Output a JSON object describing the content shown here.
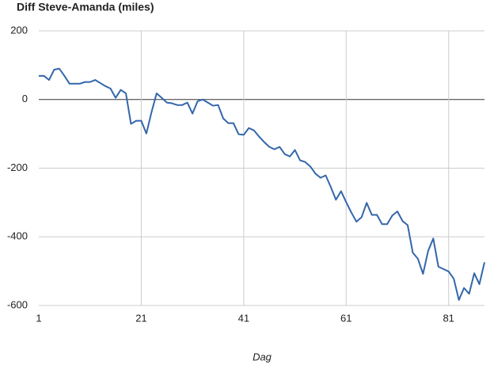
{
  "chart_data": {
    "type": "line",
    "title": "Diff Steve-Amanda (miles)",
    "x_label": "Dag",
    "x": [
      1,
      2,
      3,
      4,
      5,
      6,
      7,
      8,
      9,
      10,
      11,
      12,
      13,
      14,
      15,
      16,
      17,
      18,
      19,
      20,
      21,
      22,
      23,
      24,
      25,
      26,
      27,
      28,
      29,
      30,
      31,
      32,
      33,
      34,
      35,
      36,
      37,
      38,
      39,
      40,
      41,
      42,
      43,
      44,
      45,
      46,
      47,
      48,
      49,
      50,
      51,
      52,
      53,
      54,
      55,
      56,
      57,
      58,
      59,
      60,
      61,
      62,
      63,
      64,
      65,
      66,
      67,
      68,
      69,
      70,
      71,
      72,
      73,
      74,
      75,
      76,
      77,
      78,
      79,
      80,
      81,
      82,
      83,
      84,
      85,
      86,
      87,
      88
    ],
    "series": [
      {
        "name": "Diff",
        "color": "#3366aa",
        "values": [
          69,
          69,
          57,
          87,
          90,
          69,
          46,
          46,
          46,
          51,
          51,
          57,
          48,
          39,
          32,
          5,
          28,
          18,
          -71,
          -62,
          -62,
          -99,
          -37,
          18,
          5,
          -9,
          -11,
          -16,
          -16,
          -9,
          -41,
          -5,
          0,
          -9,
          -18,
          -16,
          -55,
          -69,
          -69,
          -101,
          -103,
          -83,
          -90,
          -108,
          -124,
          -138,
          -145,
          -138,
          -159,
          -166,
          -147,
          -177,
          -182,
          -195,
          -216,
          -228,
          -221,
          -255,
          -292,
          -267,
          -299,
          -329,
          -356,
          -343,
          -301,
          -336,
          -336,
          -363,
          -363,
          -338,
          -326,
          -354,
          -366,
          -446,
          -464,
          -508,
          -441,
          -405,
          -487,
          -494,
          -501,
          -522,
          -584,
          -549,
          -566,
          -506,
          -538,
          -474
        ]
      }
    ],
    "xlim": [
      1,
      88
    ],
    "xticks": [
      1,
      21,
      41,
      61,
      81
    ],
    "ylim": [
      -600,
      200
    ],
    "yticks": [
      -600,
      -400,
      -200,
      0,
      200
    ],
    "grid": true
  }
}
